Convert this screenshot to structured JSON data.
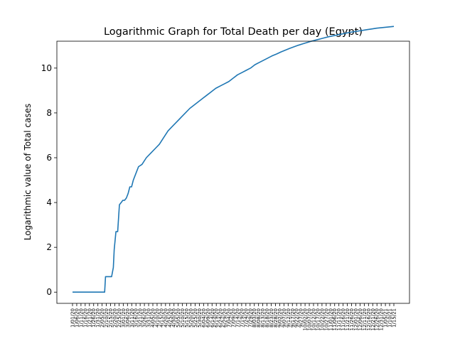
{
  "chart_data": {
    "type": "line",
    "title": "Logarithmic Graph for Total Death per day (Egypt)",
    "xlabel": "",
    "ylabel": "Logarithmic value of Total cases",
    "ylim": [
      -0.5,
      11.2
    ],
    "y_ticks": [
      0,
      2,
      4,
      6,
      8,
      10
    ],
    "grid": false,
    "x": [
      0,
      10,
      20,
      30,
      37,
      38,
      45,
      47,
      48,
      50,
      52,
      54,
      56,
      58,
      60,
      62,
      64,
      66,
      68,
      70,
      73,
      76,
      80,
      85,
      90,
      95,
      100,
      105,
      110,
      115,
      120,
      125,
      130,
      135,
      140,
      145,
      150,
      155,
      160,
      165,
      170,
      175,
      180,
      185,
      190,
      195,
      200,
      205,
      210,
      215,
      220,
      225,
      230,
      235,
      240,
      245,
      250,
      255,
      260,
      265,
      270,
      275,
      280,
      285,
      290,
      295,
      300,
      305,
      310,
      315,
      320,
      325,
      330,
      335,
      340,
      345,
      350,
      355,
      360,
      365,
      370
    ],
    "values": [
      0,
      0,
      0,
      0,
      0,
      0.69,
      0.69,
      1.1,
      1.9,
      2.7,
      2.7,
      3.9,
      4.0,
      4.1,
      4.1,
      4.2,
      4.4,
      4.7,
      4.7,
      5.0,
      5.3,
      5.6,
      5.7,
      6.0,
      6.2,
      6.4,
      6.6,
      6.9,
      7.2,
      7.4,
      7.6,
      7.8,
      8.0,
      8.2,
      8.35,
      8.5,
      8.65,
      8.8,
      8.95,
      9.1,
      9.2,
      9.3,
      9.4,
      9.55,
      9.7,
      9.8,
      9.9,
      10.0,
      10.15,
      10.25,
      10.35,
      10.45,
      10.55,
      10.63,
      10.72,
      10.8,
      10.88,
      10.95,
      11.02,
      11.08,
      11.14,
      11.2,
      11.25,
      11.3,
      11.35,
      11.4,
      11.44,
      11.48,
      11.52,
      11.56,
      11.6,
      11.63,
      11.66,
      11.69,
      11.72,
      11.75,
      11.78,
      11.8,
      11.82,
      11.84,
      11.86
    ],
    "x_tick_labels": [
      "1/01/20",
      "1/06/20",
      "1/11/20",
      "1/16/20",
      "1/21/20",
      "1/26/20",
      "1/31/20",
      "2/05/20",
      "2/10/20",
      "2/15/20",
      "2/20/20",
      "2/25/20",
      "3/01/20",
      "3/06/20",
      "3/11/20",
      "3/16/20",
      "3/21/20",
      "3/26/20",
      "3/31/20",
      "4/05/20",
      "4/10/20",
      "4/15/20",
      "4/20/20",
      "4/25/20",
      "4/30/20",
      "5/05/20",
      "5/10/20",
      "5/15/20",
      "5/20/20",
      "5/25/20",
      "5/30/20",
      "6/04/20",
      "6/09/20",
      "6/14/20",
      "6/19/20",
      "6/24/20",
      "6/29/20",
      "7/04/20",
      "7/09/20",
      "7/14/20",
      "7/19/20",
      "7/24/20",
      "7/29/20",
      "8/03/20",
      "8/08/20",
      "8/13/20",
      "8/18/20",
      "8/23/20",
      "8/28/20",
      "9/02/20",
      "9/07/20",
      "9/12/20",
      "9/17/20",
      "9/22/20",
      "9/27/20",
      "10/02/20",
      "10/07/20",
      "10/12/20",
      "10/17/20",
      "10/22/20",
      "10/27/20",
      "11/01/20",
      "11/06/20",
      "11/11/20",
      "11/16/20",
      "11/21/20",
      "11/26/20",
      "12/01/20",
      "12/06/20",
      "12/11/20",
      "12/16/20",
      "12/21/20",
      "12/26/20",
      "12/31/20",
      "1/05/21",
      "1/10/21",
      "1/15/21"
    ],
    "line_color": "#1f77b4"
  }
}
